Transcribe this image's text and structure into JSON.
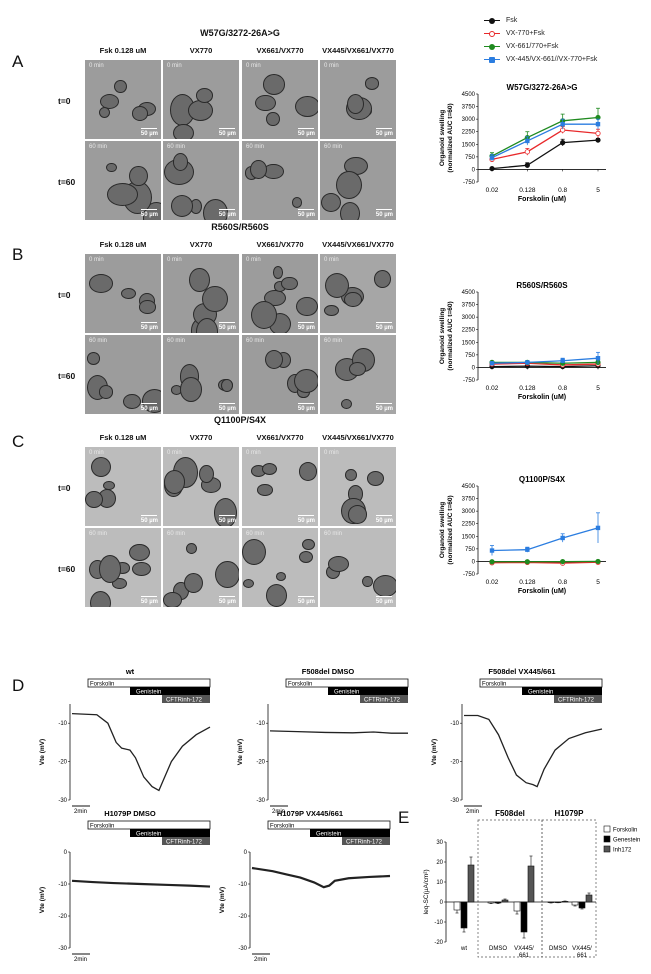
{
  "panel_letters": [
    "A",
    "B",
    "C",
    "D",
    "E"
  ],
  "organoid_panels": [
    {
      "title": "W57G/3272-26A>G",
      "columns": [
        "Fsk 0.128 uM",
        "VX770",
        "VX661/VX770",
        "VX445/VX661/VX770"
      ],
      "rows": [
        {
          "label": "t=0",
          "time_labels": [
            "0 min",
            "0 min",
            "0 min",
            "0 min"
          ]
        },
        {
          "label": "t=60",
          "time_labels": [
            "60 min",
            "60 min",
            "60 min",
            "60 min"
          ]
        }
      ],
      "scale_label": "50 µm"
    },
    {
      "title": "R560S/R560S",
      "columns": [
        "Fsk 0.128 uM",
        "VX770",
        "VX661/VX770",
        "VX445/VX661/VX770"
      ],
      "rows": [
        {
          "label": "t=0",
          "time_labels": [
            "0 min",
            "0 min",
            "0 min",
            "0 min"
          ]
        },
        {
          "label": "t=60",
          "time_labels": [
            "60 min",
            "60 min",
            "60 min",
            "60 min"
          ]
        }
      ],
      "scale_label": "50 µm"
    },
    {
      "title": "Q1100P/S4X",
      "columns": [
        "Fsk 0.128 uM",
        "VX770",
        "VX661/VX770",
        "VX445/VX661/VX770"
      ],
      "rows": [
        {
          "label": "t=0",
          "time_labels": [
            "0 min",
            "0 min",
            "0 min",
            "0 min"
          ]
        },
        {
          "label": "t=60",
          "time_labels": [
            "60 min",
            "60 min",
            "60 min",
            "60 min"
          ]
        }
      ],
      "scale_label": "50 µm"
    }
  ],
  "legend": [
    {
      "name": "Fsk",
      "color": "#111111"
    },
    {
      "name": "VX-770+Fsk",
      "color": "#e8292b"
    },
    {
      "name": "VX-661/770+Fsk",
      "color": "#1f8a1f"
    },
    {
      "name": "VX-445/VX-661//VX-770+Fsk",
      "color": "#2b7de0"
    }
  ],
  "chart_data": [
    {
      "type": "line",
      "title": "W57G/3272-26A>G",
      "xlabel": "Forskolin (uM)",
      "ylabel": "Organoid swelling (normalized AUC t=60)",
      "categories": [
        "0.02",
        "0.128",
        "0.8",
        "5"
      ],
      "yticks": [
        "-750",
        "0",
        "750",
        "1500",
        "2250",
        "3000",
        "3750",
        "4500"
      ],
      "ylim": [
        -750,
        4500
      ],
      "series": [
        {
          "name": "Fsk",
          "values": [
            50,
            250,
            1600,
            1750
          ],
          "err": [
            30,
            150,
            200,
            100
          ]
        },
        {
          "name": "VX-770+Fsk",
          "values": [
            600,
            1050,
            2350,
            2150
          ],
          "err": [
            150,
            200,
            200,
            250
          ]
        },
        {
          "name": "VX-661/770+Fsk",
          "values": [
            800,
            1900,
            2900,
            3100
          ],
          "err": [
            200,
            350,
            400,
            550
          ]
        },
        {
          "name": "VX-445/VX-661//VX-770+Fsk",
          "values": [
            700,
            1700,
            2700,
            2700
          ],
          "err": [
            200,
            250,
            300,
            300
          ]
        }
      ]
    },
    {
      "type": "line",
      "title": "R560S/R560S",
      "xlabel": "Forskolin (uM)",
      "ylabel": "Organoid swelling (normalized AUC t=60)",
      "categories": [
        "0.02",
        "0.128",
        "0.8",
        "5"
      ],
      "yticks": [
        "-750",
        "0",
        "750",
        "1500",
        "2250",
        "3000",
        "3750",
        "4500"
      ],
      "ylim": [
        -750,
        4500
      ],
      "series": [
        {
          "name": "Fsk",
          "values": [
            50,
            80,
            50,
            100
          ],
          "err": [
            30,
            30,
            30,
            40
          ]
        },
        {
          "name": "VX-770+Fsk",
          "values": [
            200,
            250,
            150,
            200
          ],
          "err": [
            60,
            60,
            60,
            80
          ]
        },
        {
          "name": "VX-661/770+Fsk",
          "values": [
            300,
            300,
            250,
            300
          ],
          "err": [
            80,
            80,
            80,
            100
          ]
        },
        {
          "name": "VX-445/VX-661//VX-770+Fsk",
          "values": [
            250,
            300,
            400,
            550
          ],
          "err": [
            80,
            80,
            150,
            350
          ]
        }
      ]
    },
    {
      "type": "line",
      "title": "Q1100P/S4X",
      "xlabel": "Forskolin (uM)",
      "ylabel": "Organoid swelling (normalized AUC t=60)",
      "categories": [
        "0.02",
        "0.128",
        "0.8",
        "5"
      ],
      "yticks": [
        "-750",
        "0",
        "750",
        "1500",
        "2250",
        "3000",
        "3750",
        "4500"
      ],
      "ylim": [
        -750,
        4500
      ],
      "series": [
        {
          "name": "Fsk",
          "values": [
            -50,
            -30,
            -40,
            -20
          ],
          "err": [
            20,
            20,
            20,
            20
          ]
        },
        {
          "name": "VX-770+Fsk",
          "values": [
            -80,
            -60,
            -100,
            -50
          ],
          "err": [
            30,
            30,
            30,
            30
          ]
        },
        {
          "name": "VX-661/770+Fsk",
          "values": [
            -20,
            -20,
            -10,
            0
          ],
          "err": [
            20,
            20,
            20,
            20
          ]
        },
        {
          "name": "VX-445/VX-661//VX-770+Fsk",
          "values": [
            650,
            700,
            1400,
            2000
          ],
          "err": [
            300,
            150,
            250,
            900
          ]
        }
      ]
    },
    {
      "type": "bar",
      "title": "",
      "ylabel": "Ieq-SC(µA/cm²)",
      "ylim": [
        -20,
        30
      ],
      "yticks": [
        "-20",
        "-10",
        "0",
        "10",
        "20",
        "30"
      ],
      "group_labels": [
        "wt",
        "DMSO",
        "VX445/661",
        "DMSO",
        "VX445/661"
      ],
      "section_labels": [
        "F508del",
        "H1079P"
      ],
      "series": [
        {
          "name": "Forskolin",
          "color": "#ffffff",
          "values": [
            -4,
            -0.5,
            -4.5,
            -0.3,
            -1.5
          ],
          "err": [
            1.5,
            0.3,
            1.5,
            0.2,
            0.5
          ]
        },
        {
          "name": "Genestein",
          "color": "#000000",
          "values": [
            -13,
            -0.5,
            -15,
            -0.2,
            -3
          ],
          "err": [
            2,
            0.3,
            3,
            0.2,
            0.5
          ]
        },
        {
          "name": "Inh172",
          "color": "#555555",
          "values": [
            18.5,
            1,
            18,
            0.3,
            3.5
          ],
          "err": [
            4,
            0.5,
            5,
            0.2,
            1
          ]
        }
      ]
    }
  ],
  "ussing": [
    {
      "title": "wt",
      "ylabel": "Vte (mV)",
      "yticks": [
        "-10",
        "-20",
        "-30"
      ],
      "scale": "2min",
      "steps": [
        "Forskolin",
        "Genistein",
        "CFTRinh-172"
      ]
    },
    {
      "title": "F508del DMSO",
      "ylabel": "Vte (mV)",
      "yticks": [
        "-10",
        "-20",
        "-30"
      ],
      "scale": "2min",
      "steps": [
        "Forskolin",
        "Genistein",
        "CFTRinh-172"
      ]
    },
    {
      "title": "F508del VX445/661",
      "ylabel": "Vte (mV)",
      "yticks": [
        "-10",
        "-20",
        "-30"
      ],
      "scale": "2min",
      "steps": [
        "Forskolin",
        "Genistein",
        "CFTRinh-172"
      ]
    },
    {
      "title": "H1079P DMSO",
      "ylabel": "Vte (mV)",
      "yticks": [
        "0",
        "-10",
        "-20",
        "-30"
      ],
      "scale": "2min",
      "steps": [
        "Forskolin",
        "Genistein",
        "CFTRinh-172"
      ]
    },
    {
      "title": "H1079P VX445/661",
      "ylabel": "Vte (mV)",
      "yticks": [
        "0",
        "-10",
        "-20",
        "-30"
      ],
      "scale": "2min",
      "steps": [
        "Forskolin",
        "Genistein",
        "CFTRinh-172"
      ]
    }
  ]
}
